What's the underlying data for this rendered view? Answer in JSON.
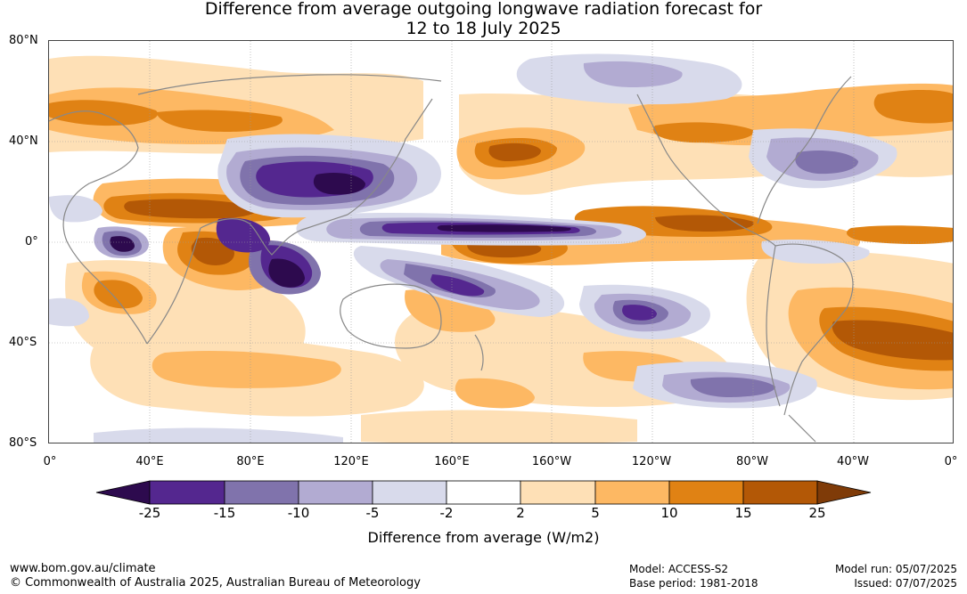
{
  "title": {
    "line1": "Difference from average outgoing longwave radiation forecast for",
    "line2": "12 to 18 July 2025"
  },
  "map": {
    "lat_labels": [
      "80°N",
      "40°N",
      "0°",
      "40°S",
      "80°S"
    ],
    "lon_labels": [
      "0°",
      "40°E",
      "80°E",
      "120°E",
      "160°E",
      "160°W",
      "120°W",
      "80°W",
      "40°W",
      "0°"
    ],
    "colors": {
      "neg_25_plus": "#2d0a4e",
      "neg_15_25": "#54278f",
      "neg_10_15": "#8073ac",
      "neg_5_10": "#b2abd2",
      "neg_2_5": "#d8daeb",
      "neutral": "#ffffff",
      "pos_2_5": "#fee0b6",
      "pos_5_10": "#fdb863",
      "pos_10_15": "#e08214",
      "pos_15_25": "#b35806",
      "pos_25_plus": "#7f3b08",
      "coast": "#888888",
      "grid": "#999999"
    }
  },
  "colorbar": {
    "ticks": [
      "-25",
      "-15",
      "-10",
      "-5",
      "-2",
      "2",
      "5",
      "10",
      "15",
      "25"
    ],
    "label": "Difference from average (W/m2)"
  },
  "footer": {
    "website": "www.bom.gov.au/climate",
    "copyright": "© Commonwealth of Australia 2025, Australian Bureau of Meteorology",
    "model": "Model: ACCESS-S2",
    "base_period": "Base period: 1981-2018",
    "model_run": "Model run: 05/07/2025",
    "issued": "Issued: 07/07/2025"
  }
}
